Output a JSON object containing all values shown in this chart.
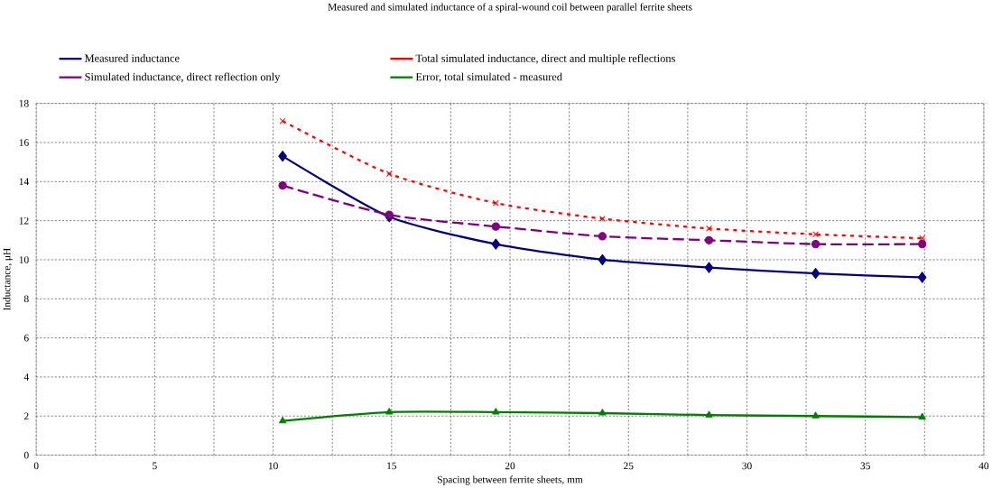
{
  "chart_data": {
    "type": "line",
    "title": "Measured and simulated inductance of a spiral-wound coil between parallel ferrite sheets",
    "xlabel": "Spacing between ferrite sheets, mm",
    "ylabel": "Inductance, μH",
    "x": [
      10.4,
      14.9,
      19.4,
      23.9,
      28.4,
      32.9,
      37.4
    ],
    "series": [
      {
        "name": "Measured inductance",
        "color": "#000080",
        "marker": "diamond",
        "line_style": "solid",
        "values": [
          15.3,
          12.2,
          10.8,
          10.0,
          9.6,
          9.3,
          9.1
        ]
      },
      {
        "name": "Total simulated inductance, direct and multiple reflections",
        "color": "#ff0000",
        "marker": "cross",
        "line_style": "dotted",
        "values": [
          17.1,
          14.4,
          12.9,
          12.1,
          11.6,
          11.3,
          11.1
        ]
      },
      {
        "name": "Simulated inductance, direct reflection only",
        "color": "#800080",
        "marker": "circle",
        "line_style": "dashed",
        "values": [
          13.8,
          12.3,
          11.7,
          11.2,
          11.0,
          10.8,
          10.8
        ]
      },
      {
        "name": "Error, total simulated - measured",
        "color": "#008000",
        "marker": "triangle",
        "line_style": "solid",
        "values": [
          1.75,
          2.2,
          2.2,
          2.15,
          2.05,
          2.0,
          1.95
        ]
      }
    ],
    "xlim": [
      0,
      40
    ],
    "ylim": [
      0,
      18
    ],
    "xticks": [
      0,
      {
        "value": 2.5,
        "label": null
      },
      5,
      {
        "value": 7.5,
        "label": null
      },
      10,
      {
        "value": 12.5,
        "label": null
      },
      15,
      {
        "value": 17.5,
        "label": null
      },
      20,
      {
        "value": 22.5,
        "label": null
      },
      25,
      {
        "value": 27.5,
        "label": null
      },
      30,
      {
        "value": 32.5,
        "label": null
      },
      35,
      {
        "value": 37.5,
        "label": null
      },
      40
    ],
    "yticks": [
      0,
      2,
      4,
      6,
      8,
      10,
      12,
      14,
      16,
      18
    ],
    "grid": true,
    "legend": "top"
  }
}
